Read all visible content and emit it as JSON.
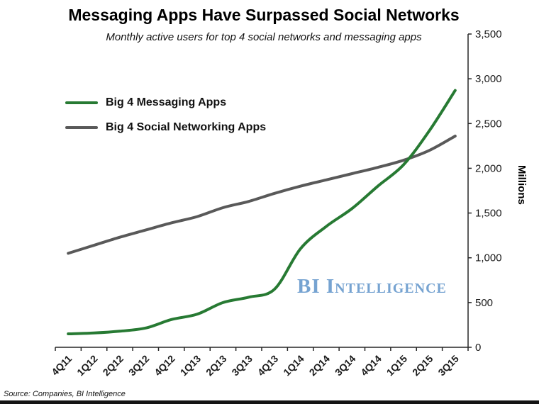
{
  "page": {
    "watermark": "BI Intelligence",
    "source": "Source: Companies, BI Intelligence"
  },
  "chart_data": {
    "type": "line",
    "title": "Messaging Apps Have Surpassed Social Networks",
    "subtitle": "Monthly active users for top 4 social networks and messaging apps",
    "ylabel": "Millions",
    "categories": [
      "4Q11",
      "1Q12",
      "2Q12",
      "3Q12",
      "4Q12",
      "1Q13",
      "2Q13",
      "3Q13",
      "4Q13",
      "1Q14",
      "2Q14",
      "3Q14",
      "4Q14",
      "1Q15",
      "2Q15",
      "3Q15"
    ],
    "ylim": [
      0,
      3500
    ],
    "ytick_step": 500,
    "grid": false,
    "legend_position": "upper-left-inside",
    "axis_color": "#262626",
    "series": [
      {
        "name": "Big 4 Messaging Apps",
        "color": "#277a33",
        "values": [
          150,
          160,
          180,
          215,
          310,
          370,
          500,
          560,
          650,
          1100,
          1350,
          1550,
          1800,
          2040,
          2420,
          2870
        ]
      },
      {
        "name": "Big 4 Social Networking Apps",
        "color": "#595959",
        "values": [
          1050,
          1140,
          1230,
          1310,
          1390,
          1460,
          1560,
          1630,
          1720,
          1800,
          1870,
          1940,
          2010,
          2090,
          2200,
          2360
        ]
      }
    ]
  }
}
